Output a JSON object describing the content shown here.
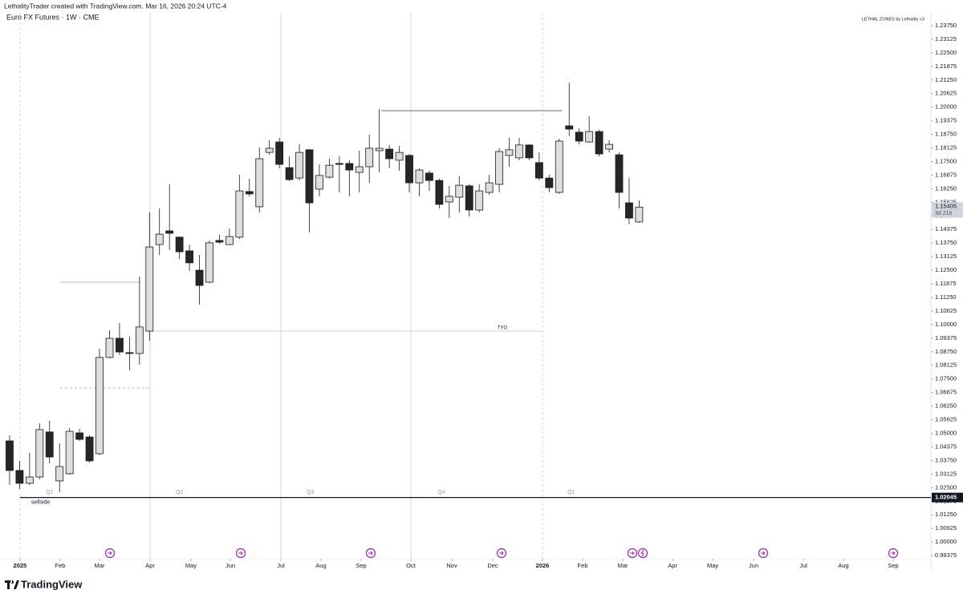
{
  "header": {
    "credit": "LethalityTrader created with TradingView.com, Mar 16, 2026 20:24 UTC-4",
    "logo": "TradingView"
  },
  "chart_data": {
    "type": "candlestick",
    "title": "Euro FX Futures · 1W · CME",
    "indicator": "LETHAL ZONES by Lethality <3",
    "x": [
      0,
      1,
      2,
      3,
      4,
      5,
      6,
      7,
      8,
      9,
      10,
      11,
      12,
      13,
      14,
      15,
      16,
      17,
      18,
      19,
      20,
      21,
      22,
      23,
      24,
      25,
      26,
      27,
      28,
      29,
      30,
      31,
      32,
      33,
      34,
      35,
      36,
      37,
      38,
      39,
      40,
      41,
      42,
      43,
      44,
      45,
      46,
      47,
      48,
      49,
      50,
      51,
      52,
      53,
      54,
      55,
      56,
      57,
      58,
      59,
      60,
      61,
      62,
      63
    ],
    "open": [
      1.0465,
      1.0329,
      1.027,
      1.0299,
      1.0506,
      1.0281,
      1.0314,
      1.0502,
      1.0483,
      1.0406,
      1.0849,
      1.0937,
      1.0871,
      1.0867,
      1.097,
      1.1368,
      1.1431,
      1.1402,
      1.1339,
      1.125,
      1.1195,
      1.1387,
      1.1368,
      1.1402,
      1.1612,
      1.1542,
      1.1792,
      1.184,
      1.1722,
      1.1674,
      1.1804,
      1.1623,
      1.1678,
      1.1741,
      1.1741,
      1.17,
      1.1726,
      1.18,
      1.1807,
      1.1756,
      1.1778,
      1.1652,
      1.1697,
      1.1663,
      1.1564,
      1.1586,
      1.1638,
      1.1527,
      1.1608,
      1.1645,
      1.1778,
      1.1767,
      1.1826,
      1.1745,
      1.1674,
      1.1608,
      1.1914,
      1.1885,
      1.184,
      1.1888,
      1.1807,
      1.1781,
      1.156,
      1.1472
    ],
    "high": [
      1.0491,
      1.0373,
      1.041,
      1.0546,
      1.0557,
      1.0454,
      1.0524,
      1.052,
      1.0491,
      1.0889,
      1.0974,
      1.1007,
      1.0944,
      1.1221,
      1.1516,
      1.1534,
      1.1645,
      1.1405,
      1.1368,
      1.132,
      1.1387,
      1.1413,
      1.1442,
      1.1689,
      1.1671,
      1.1815,
      1.1848,
      1.1859,
      1.1774,
      1.1829,
      1.1807,
      1.1737,
      1.1763,
      1.1774,
      1.1756,
      1.18,
      1.1874,
      1.1992,
      1.1826,
      1.1822,
      1.1785,
      1.1719,
      1.1708,
      1.1671,
      1.1638,
      1.1682,
      1.1645,
      1.1645,
      1.1689,
      1.1811,
      1.1859,
      1.1859,
      1.1829,
      1.1792,
      1.1689,
      1.1855,
      1.2113,
      1.1903,
      1.1958,
      1.1896,
      1.1848,
      1.1792,
      1.1674,
      1.1571
    ],
    "low": [
      1.0262,
      1.0244,
      1.0262,
      1.0288,
      1.0362,
      1.0229,
      1.031,
      1.0465,
      1.0365,
      1.0399,
      1.0845,
      1.086,
      1.079,
      1.0815,
      1.0926,
      1.132,
      1.1343,
      1.1302,
      1.1247,
      1.1092,
      1.1191,
      1.1372,
      1.1365,
      1.1394,
      1.159,
      1.1516,
      1.1781,
      1.1719,
      1.166,
      1.1663,
      1.1424,
      1.159,
      1.1671,
      1.1608,
      1.159,
      1.1608,
      1.1652,
      1.17,
      1.1719,
      1.1708,
      1.1608,
      1.159,
      1.1615,
      1.1534,
      1.149,
      1.1516,
      1.1497,
      1.1516,
      1.1597,
      1.1608,
      1.1726,
      1.1756,
      1.1756,
      1.1663,
      1.1608,
      1.1601,
      1.1866,
      1.1829,
      1.1837,
      1.1774,
      1.1792,
      1.1534,
      1.1461,
      1.1468
    ],
    "close": [
      1.0329,
      1.027,
      1.0299,
      1.0517,
      1.0391,
      1.0347,
      1.0509,
      1.0472,
      1.0373,
      1.0849,
      1.0937,
      1.0874,
      1.0867,
      1.0989,
      1.1357,
      1.1416,
      1.142,
      1.1335,
      1.1284,
      1.118,
      1.1376,
      1.1379,
      1.1405,
      1.1615,
      1.1601,
      1.1763,
      1.1811,
      1.1737,
      1.1667,
      1.1792,
      1.156,
      1.1686,
      1.1733,
      1.1737,
      1.1711,
      1.1726,
      1.1811,
      1.1811,
      1.1763,
      1.1792,
      1.1652,
      1.1711,
      1.1663,
      1.1553,
      1.159,
      1.1641,
      1.1527,
      1.1615,
      1.1652,
      1.1796,
      1.1804,
      1.1826,
      1.1767,
      1.1674,
      1.163,
      1.1844,
      1.1899,
      1.1844,
      1.1888,
      1.1785,
      1.1829,
      1.1608,
      1.149,
      1.15405
    ],
    "up_color": "#dedede",
    "down_color": "#262626",
    "wick_color": "#1a1a1a",
    "countdown": "3d 21h",
    "xlim": [
      -0.96,
      92.2
    ],
    "xticks": [
      {
        "value": 1.04,
        "label": "2025"
      },
      {
        "value": 5.06,
        "label": "Feb"
      },
      {
        "value": 9.0,
        "label": "Mar"
      },
      {
        "value": 14.06,
        "label": "Apr"
      },
      {
        "value": 18.15,
        "label": "May"
      },
      {
        "value": 22.09,
        "label": "Jun"
      },
      {
        "value": 27.15,
        "label": "Jul"
      },
      {
        "value": 31.16,
        "label": "Aug"
      },
      {
        "value": 35.18,
        "label": "Sep"
      },
      {
        "value": 40.16,
        "label": "Oct"
      },
      {
        "value": 44.26,
        "label": "Nov"
      },
      {
        "value": 48.35,
        "label": "Dec"
      },
      {
        "value": 53.33,
        "label": "2026"
      },
      {
        "value": 57.35,
        "label": "Feb"
      },
      {
        "value": 61.37,
        "label": "Mar"
      },
      {
        "value": 66.35,
        "label": "Apr"
      },
      {
        "value": 70.36,
        "label": "May"
      },
      {
        "value": 74.46,
        "label": "Jun"
      },
      {
        "value": 79.44,
        "label": "Jul"
      },
      {
        "value": 83.45,
        "label": "Aug"
      },
      {
        "value": 88.43,
        "label": "Sep"
      }
    ],
    "ylim": [
      0.9923,
      1.2434
    ],
    "yticks": [
      {
        "value": 0.99375,
        "label": "0.99375"
      },
      {
        "value": 1.0,
        "label": "1.00000"
      },
      {
        "value": 1.00625,
        "label": "1.00625"
      },
      {
        "value": 1.0125,
        "label": "1.01250"
      },
      {
        "value": 1.01875,
        "label": "1.01875"
      },
      {
        "value": 1.025,
        "label": "1.02500"
      },
      {
        "value": 1.03125,
        "label": "1.03125"
      },
      {
        "value": 1.0375,
        "label": "1.03750"
      },
      {
        "value": 1.04375,
        "label": "1.04375"
      },
      {
        "value": 1.05,
        "label": "1.05000"
      },
      {
        "value": 1.05625,
        "label": "1.05625"
      },
      {
        "value": 1.0625,
        "label": "1.06250"
      },
      {
        "value": 1.06875,
        "label": "1.06875"
      },
      {
        "value": 1.075,
        "label": "1.07500"
      },
      {
        "value": 1.08125,
        "label": "1.08125"
      },
      {
        "value": 1.0875,
        "label": "1.08750"
      },
      {
        "value": 1.09375,
        "label": "1.09375"
      },
      {
        "value": 1.1,
        "label": "1.10000"
      },
      {
        "value": 1.10625,
        "label": "1.10625"
      },
      {
        "value": 1.1125,
        "label": "1.11250"
      },
      {
        "value": 1.11875,
        "label": "1.11875"
      },
      {
        "value": 1.125,
        "label": "1.12500"
      },
      {
        "value": 1.13125,
        "label": "1.13125"
      },
      {
        "value": 1.1375,
        "label": "1.13750"
      },
      {
        "value": 1.14375,
        "label": "1.14375"
      },
      {
        "value": 1.15,
        "label": "1.15000"
      },
      {
        "value": 1.15625,
        "label": "1.15625"
      },
      {
        "value": 1.1625,
        "label": "1.16250"
      },
      {
        "value": 1.16875,
        "label": "1.16875"
      },
      {
        "value": 1.175,
        "label": "1.17500"
      },
      {
        "value": 1.18125,
        "label": "1.18125"
      },
      {
        "value": 1.1875,
        "label": "1.18750"
      },
      {
        "value": 1.19375,
        "label": "1.19375"
      },
      {
        "value": 1.2,
        "label": "1.20000"
      },
      {
        "value": 1.20625,
        "label": "1.20625"
      },
      {
        "value": 1.2125,
        "label": "1.21250"
      },
      {
        "value": 1.21875,
        "label": "1.21875"
      },
      {
        "value": 1.225,
        "label": "1.22500"
      },
      {
        "value": 1.23125,
        "label": "1.23125"
      },
      {
        "value": 1.2375,
        "label": "1.23750"
      }
    ],
    "quarters": [
      {
        "label": "Q1",
        "x": 4.0
      },
      {
        "label": "Q2",
        "x": 17.0
      },
      {
        "label": "Q3",
        "x": 30.1
      },
      {
        "label": "Q4",
        "x": 43.2
      },
      {
        "label": "Q1",
        "x": 56.2
      }
    ],
    "separators": [
      {
        "x": 1.04,
        "dashed": true
      },
      {
        "x": 14.06,
        "dashed": false
      },
      {
        "x": 27.15,
        "dashed": false
      },
      {
        "x": 40.16,
        "dashed": false
      },
      {
        "x": 53.33,
        "dashed": true
      }
    ],
    "levels": [
      {
        "value": 1.02045,
        "label": "sellside",
        "x0": 1.04,
        "x1": 92.2,
        "color": "#131722"
      },
      {
        "value": 1.097,
        "label": "TYO",
        "x0": 14.06,
        "x1": 53.33,
        "color": "#c8c8c8"
      },
      {
        "value": 1.1984,
        "x0": 37.2,
        "x1": 55.3,
        "color": "#555555"
      },
      {
        "value": 1.1195,
        "x0": 5.06,
        "x1": 13.1,
        "color": "#b0b0b0"
      },
      {
        "value": 1.0708,
        "x0": 5.06,
        "x1": 14.06,
        "color": "#b0b0b0",
        "dashed": true
      }
    ]
  }
}
